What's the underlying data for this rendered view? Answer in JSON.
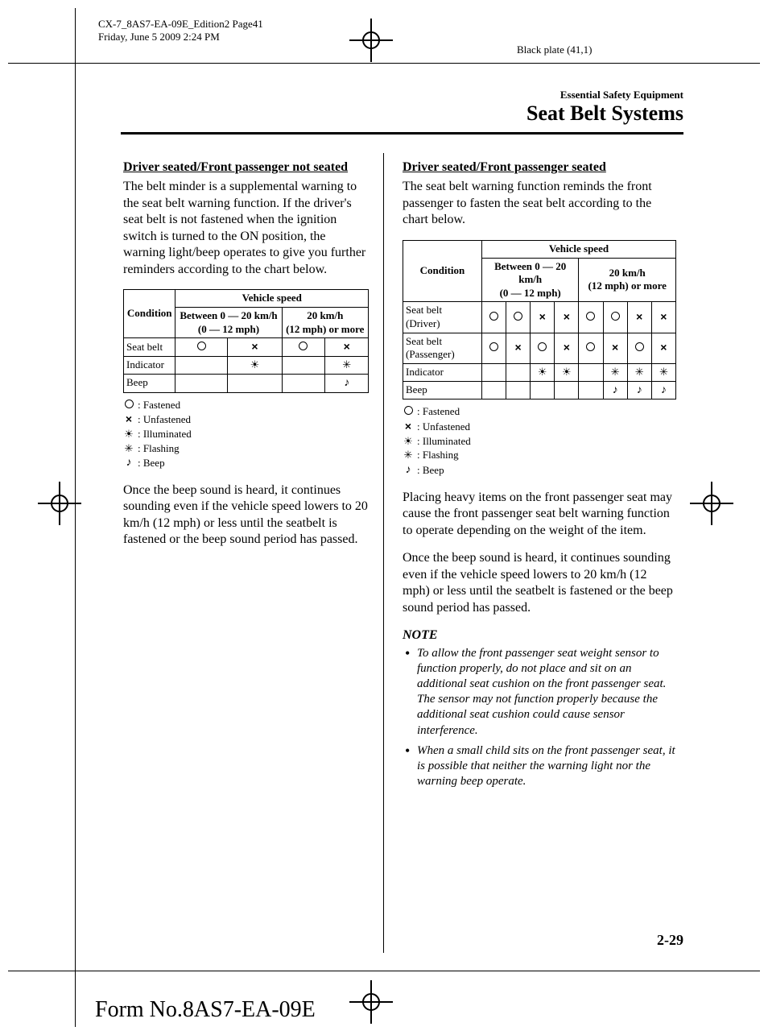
{
  "page_header": {
    "line1": "CX-7_8AS7-EA-09E_Edition2 Page41",
    "line2": "Friday, June 5 2009 2:24 PM",
    "black_plate": "Black plate (41,1)"
  },
  "header": {
    "category": "Essential Safety Equipment",
    "title": "Seat Belt Systems"
  },
  "left": {
    "subhead": "Driver seated/Front passenger not seated",
    "para1": "The belt minder is a supplemental warning to the seat belt warning function. If the driver's seat belt is not fastened when the ignition switch is turned to the ON position, the warning light/beep operates to give you further reminders according to the chart below.",
    "table": {
      "condition_label": "Condition",
      "speed_label": "Vehicle speed",
      "col1": "Between 0 — 20 km/h\n(0 — 12 mph)",
      "col2": "20 km/h\n(12 mph) or more",
      "rows": [
        {
          "label": "Seat belt",
          "cells": [
            "circle",
            "x",
            "circle",
            "x"
          ]
        },
        {
          "label": "Indicator",
          "cells": [
            "",
            "ill",
            "",
            "flash"
          ]
        },
        {
          "label": "Beep",
          "cells": [
            "",
            "",
            "",
            "beep"
          ]
        }
      ]
    },
    "legend": [
      {
        "sym": "circle",
        "text": ": Fastened"
      },
      {
        "sym": "x",
        "text": ": Unfastened"
      },
      {
        "sym": "ill",
        "text": ": Illuminated"
      },
      {
        "sym": "flash",
        "text": ": Flashing"
      },
      {
        "sym": "beep",
        "text": ": Beep"
      }
    ],
    "para2": "Once the beep sound is heard, it continues sounding even if the vehicle speed lowers to 20 km/h (12 mph) or less until the seatbelt is fastened or the beep sound period has passed."
  },
  "right": {
    "subhead": "Driver seated/Front passenger seated",
    "para1": "The seat belt warning function reminds the front passenger to fasten the seat belt according to the chart below.",
    "table": {
      "condition_label": "Condition",
      "speed_label": "Vehicle speed",
      "col1": "Between 0 — 20 km/h\n(0 — 12 mph)",
      "col2": "20 km/h\n(12 mph) or more",
      "rows": [
        {
          "label": "Seat belt (Driver)",
          "cells": [
            "circle",
            "circle",
            "x",
            "x",
            "circle",
            "circle",
            "x",
            "x"
          ]
        },
        {
          "label": "Seat belt (Passenger)",
          "cells": [
            "circle",
            "x",
            "circle",
            "x",
            "circle",
            "x",
            "circle",
            "x"
          ]
        },
        {
          "label": "Indicator",
          "cells": [
            "",
            "",
            "ill",
            "ill",
            "",
            "flash",
            "flash",
            "flash"
          ]
        },
        {
          "label": "Beep",
          "cells": [
            "",
            "",
            "",
            "",
            "",
            "beep",
            "beep",
            "beep"
          ]
        }
      ]
    },
    "legend": [
      {
        "sym": "circle",
        "text": ": Fastened"
      },
      {
        "sym": "x",
        "text": ": Unfastened"
      },
      {
        "sym": "ill",
        "text": ": Illuminated"
      },
      {
        "sym": "flash",
        "text": ": Flashing"
      },
      {
        "sym": "beep",
        "text": ": Beep"
      }
    ],
    "para2": "Placing heavy items on the front passenger seat may cause the front passenger seat belt warning function to operate depending on the weight of the item.",
    "para3": "Once the beep sound is heard, it continues sounding even if the vehicle speed lowers to 20 km/h (12 mph) or less until the seatbelt is fastened or the beep sound period has passed.",
    "note_title": "NOTE",
    "notes": [
      "To allow the front passenger seat weight sensor to function properly, do not place and sit on an additional seat cushion on the front passenger seat. The sensor may not function properly because the additional seat cushion could cause sensor interference.",
      "When a small child sits on the front passenger seat, it is possible that neither the warning light nor the warning beep operate."
    ]
  },
  "page_number": "2-29",
  "form_number": "Form No.8AS7-EA-09E",
  "symbols": {
    "circle": "○",
    "x": "×",
    "ill": "☀",
    "flash": "✳",
    "beep": "♪"
  }
}
